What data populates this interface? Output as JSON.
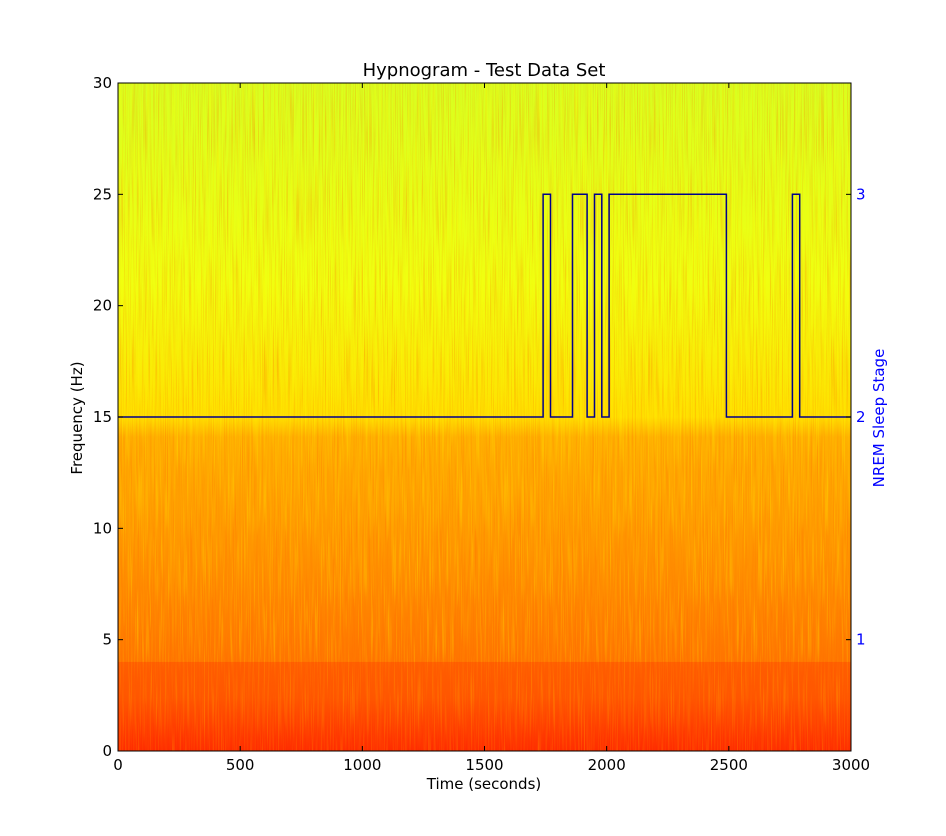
{
  "chart_data": {
    "type": "heatmap",
    "title": "Hypnogram - Test Data Set",
    "xlabel": "Time (seconds)",
    "ylabel": "Frequency (Hz)",
    "y2label": "NREM Sleep Stage",
    "xlim": [
      0,
      3000
    ],
    "ylim": [
      0,
      30
    ],
    "xticks": [
      0,
      500,
      1000,
      1500,
      2000,
      2500,
      3000
    ],
    "yticks": [
      0,
      5,
      10,
      15,
      20,
      25,
      30
    ],
    "y2ticks": [
      1,
      2,
      3
    ],
    "y2_to_y": {
      "1": 5,
      "2": 15,
      "3": 25
    },
    "grid": false,
    "colormap": "jet (high power = red, low power = green)",
    "hypnogram_color": "#00008b",
    "y2_color": "#0000ff",
    "hypnogram": {
      "name": "NREM Sleep Stage",
      "x": [
        0,
        1740,
        1740,
        1770,
        1770,
        1860,
        1860,
        1920,
        1920,
        1950,
        1950,
        1980,
        1980,
        2010,
        2010,
        2490,
        2490,
        2760,
        2760,
        2790,
        2790,
        3000
      ],
      "y": [
        2,
        2,
        3,
        3,
        2,
        2,
        3,
        3,
        2,
        2,
        3,
        3,
        2,
        2,
        3,
        3,
        2,
        2,
        3,
        3,
        2,
        2
      ]
    }
  }
}
